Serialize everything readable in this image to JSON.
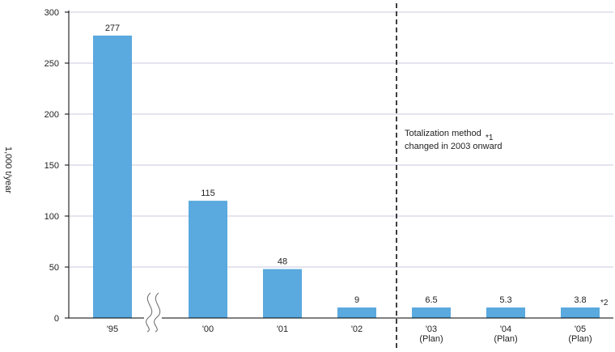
{
  "chart_data": {
    "type": "bar",
    "categories": [
      "'95",
      "'00",
      "'01",
      "'02",
      "'03\n(Plan)",
      "'04\n(Plan)",
      "'05\n(Plan)"
    ],
    "values": [
      277,
      115,
      48,
      9,
      6.5,
      5.3,
      3.8
    ],
    "data_labels": [
      "277",
      "115",
      "48",
      "9",
      "6.5",
      "5.3",
      "3.8"
    ],
    "title": "",
    "xlabel": "",
    "ylabel": "1,000 t/year",
    "ylim": [
      0,
      300
    ],
    "yticks": [
      0,
      50,
      100,
      150,
      200,
      250,
      300
    ],
    "grid": true,
    "axis_break_between": [
      "'95",
      "'00"
    ],
    "divider_before": "'03\n(Plan)",
    "annotations": {
      "method_note_line1": "Totalization method",
      "method_note_line2": "changed in 2003 onward",
      "method_note_mark": "*1",
      "last_bar_mark": "*2"
    },
    "colors": {
      "bar": "#5aa9df",
      "grid": "#c8c8dc",
      "axis": "#000000",
      "divider": "#000000"
    }
  }
}
